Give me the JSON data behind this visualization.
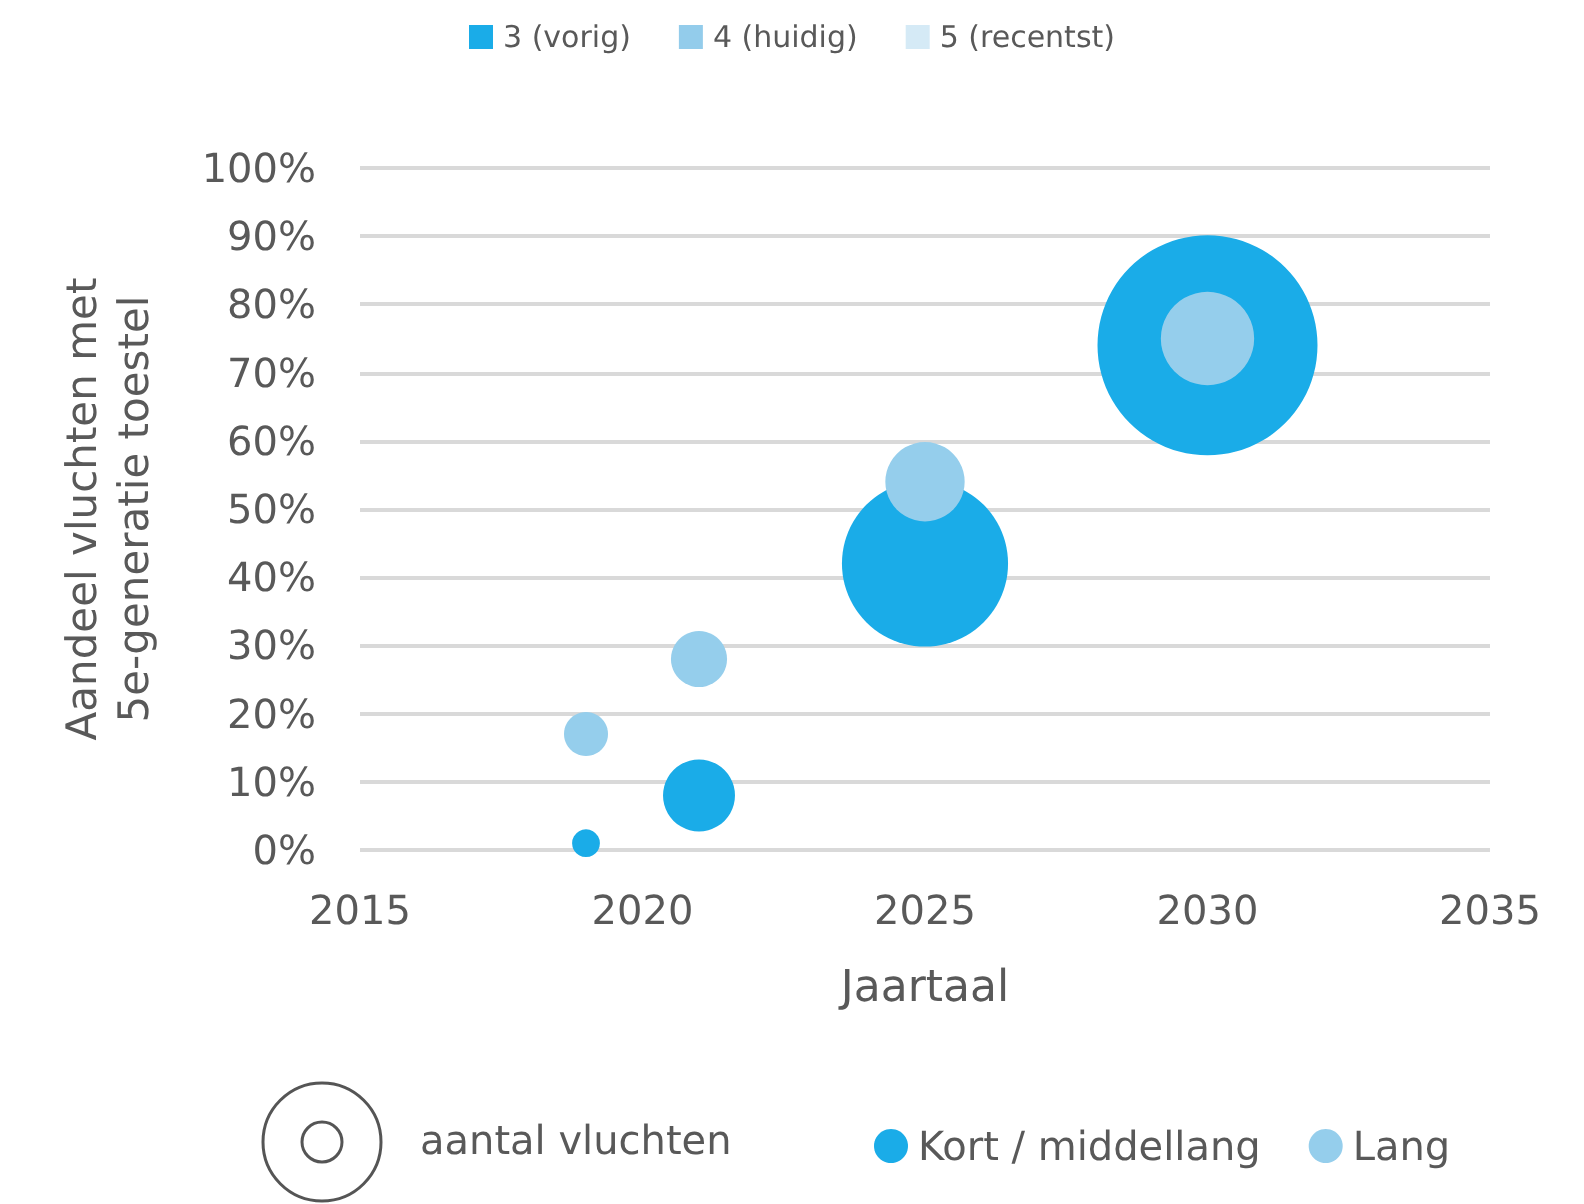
{
  "chart_data": {
    "type": "bubble",
    "xlabel": "Jaartaal",
    "ylabel": "Aandeel vluchten met 5e-generatie toestel",
    "annotations": [
      "aantal vluchten"
    ],
    "xlim": [
      2015,
      2035
    ],
    "xticks": [
      2015,
      2020,
      2025,
      2030,
      2035
    ],
    "ylim": [
      0,
      100
    ],
    "yticks": [
      {
        "value": 0,
        "label": "0%"
      },
      {
        "value": 10,
        "label": "10%"
      },
      {
        "value": 20,
        "label": "20%"
      },
      {
        "value": 30,
        "label": "30%"
      },
      {
        "value": 40,
        "label": "40%"
      },
      {
        "value": 50,
        "label": "50%"
      },
      {
        "value": 60,
        "label": "60%"
      },
      {
        "value": 70,
        "label": "70%"
      },
      {
        "value": 80,
        "label": "80%"
      },
      {
        "value": 90,
        "label": "90%"
      },
      {
        "value": 100,
        "label": "100%"
      }
    ],
    "grid": "y",
    "legend": "bottom",
    "series": [
      {
        "name": "Kort / middellang",
        "color": "#1aace8",
        "x": [
          2019,
          2021,
          2025,
          2030
        ],
        "values": [
          1,
          8,
          42,
          74
        ],
        "sizes": [
          0.016,
          0.107,
          0.57,
          1
        ]
      },
      {
        "name": "Lang",
        "color": "#95ceec",
        "x": [
          2019,
          2021,
          2025,
          2030
        ],
        "values": [
          17,
          28,
          54,
          75
        ],
        "sizes": [
          0.04,
          0.065,
          0.13,
          0.18
        ]
      },
      {
        "name": "3 (vorig)",
        "color": "#1aace8"
      },
      {
        "name": "4 (huidig)",
        "color": "#93cceb"
      },
      {
        "name": "5 (recentst)",
        "color": "#d5eaf6"
      }
    ]
  }
}
